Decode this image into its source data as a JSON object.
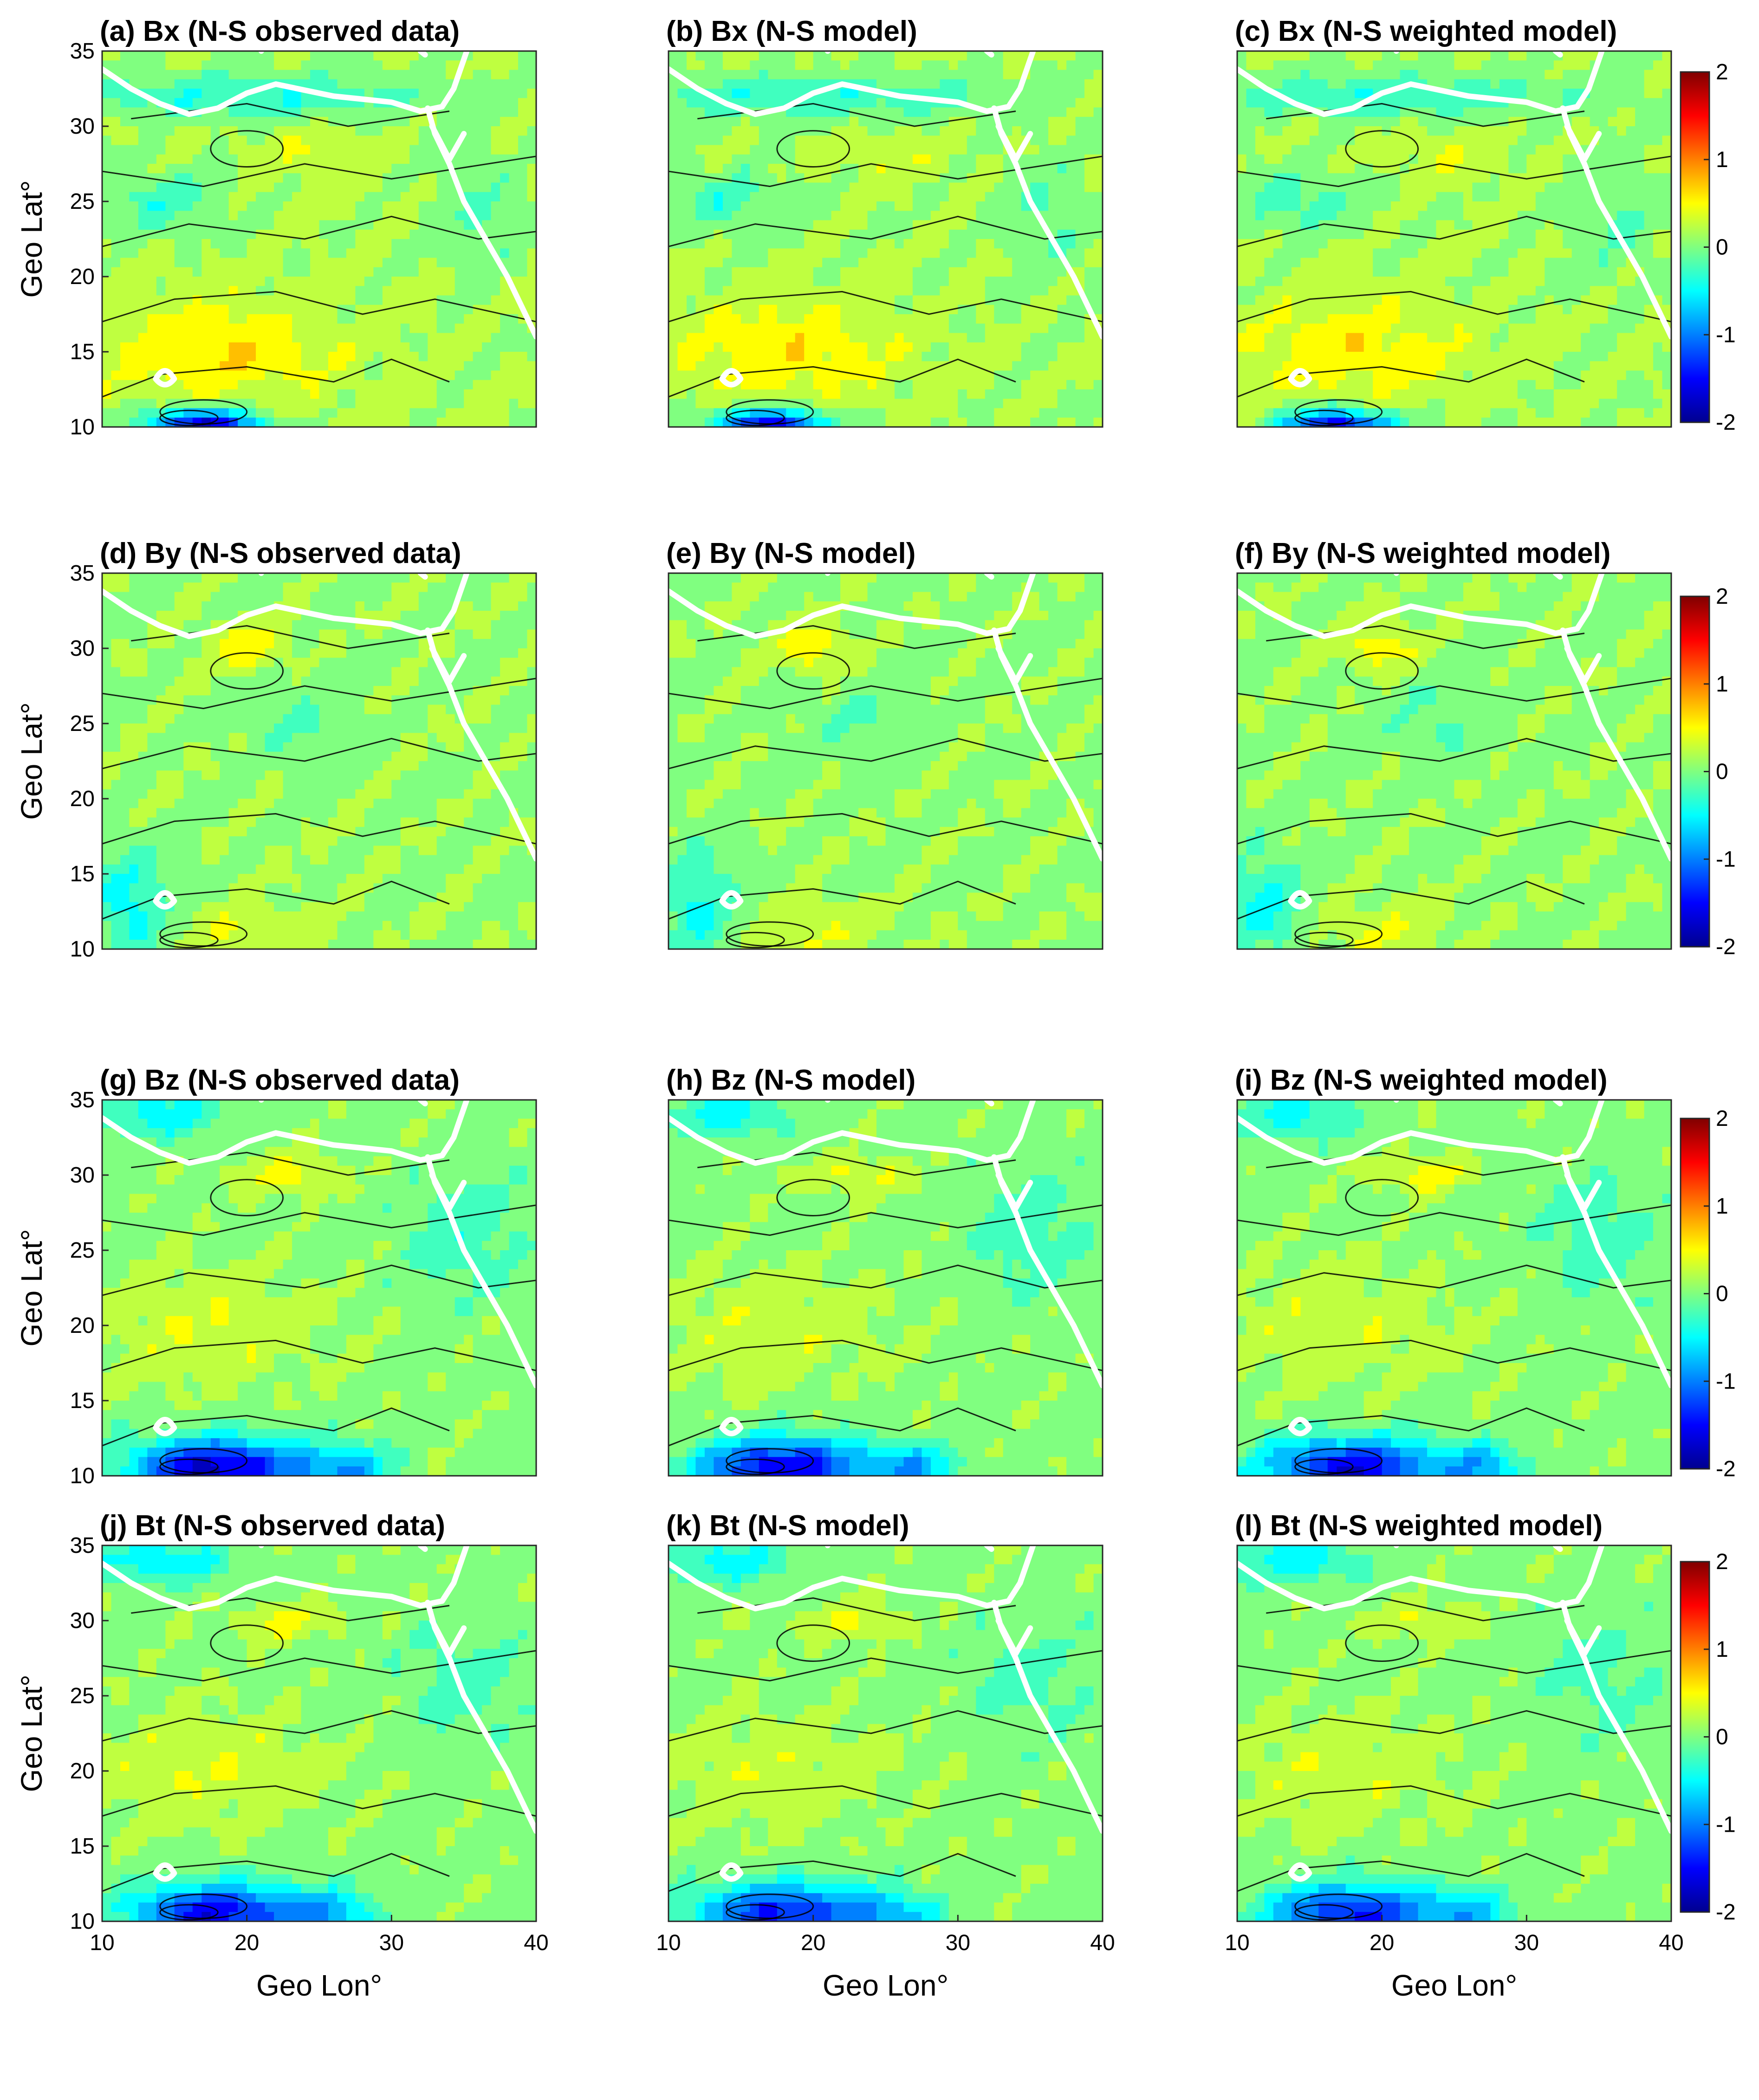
{
  "figure": {
    "colorbar": {
      "ticks": [
        "2",
        "1",
        "0",
        "-1",
        "-2"
      ],
      "colormap": "jet",
      "range": [
        -2,
        2
      ]
    },
    "x_axis_label": "Geo Lon°",
    "y_axis_label": "Geo Lat°",
    "x_ticks": [
      "10",
      "20",
      "30",
      "40"
    ],
    "y_ticks": [
      "35",
      "30",
      "25",
      "20",
      "15",
      "10"
    ]
  },
  "chart_data": [
    {
      "type": "heatmap",
      "title": "(a) Bx (N-S observed data)",
      "component": "Bx",
      "variant": "observed",
      "xlim": [
        10,
        40
      ],
      "ylim": [
        10,
        35
      ],
      "clim": [
        -2,
        2
      ]
    },
    {
      "type": "heatmap",
      "title": "(b) Bx (N-S model)",
      "component": "Bx",
      "variant": "model",
      "xlim": [
        10,
        40
      ],
      "ylim": [
        10,
        35
      ],
      "clim": [
        -2,
        2
      ]
    },
    {
      "type": "heatmap",
      "title": "(c) Bx (N-S weighted model)",
      "component": "Bx",
      "variant": "weighted",
      "xlim": [
        10,
        40
      ],
      "ylim": [
        10,
        35
      ],
      "clim": [
        -2,
        2
      ]
    },
    {
      "type": "heatmap",
      "title": "(d) By (N-S observed data)",
      "component": "By",
      "variant": "observed",
      "xlim": [
        10,
        40
      ],
      "ylim": [
        10,
        35
      ],
      "clim": [
        -2,
        2
      ]
    },
    {
      "type": "heatmap",
      "title": "(e) By (N-S model)",
      "component": "By",
      "variant": "model",
      "xlim": [
        10,
        40
      ],
      "ylim": [
        10,
        35
      ],
      "clim": [
        -2,
        2
      ]
    },
    {
      "type": "heatmap",
      "title": "(f) By (N-S weighted model)",
      "component": "By",
      "variant": "weighted",
      "xlim": [
        10,
        40
      ],
      "ylim": [
        10,
        35
      ],
      "clim": [
        -2,
        2
      ]
    },
    {
      "type": "heatmap",
      "title": "(g) Bz (N-S observed data)",
      "component": "Bz",
      "variant": "observed",
      "xlim": [
        10,
        40
      ],
      "ylim": [
        10,
        35
      ],
      "clim": [
        -2,
        2
      ]
    },
    {
      "type": "heatmap",
      "title": "(h) Bz (N-S model)",
      "component": "Bz",
      "variant": "model",
      "xlim": [
        10,
        40
      ],
      "ylim": [
        10,
        35
      ],
      "clim": [
        -2,
        2
      ]
    },
    {
      "type": "heatmap",
      "title": "(i) Bz (N-S weighted model)",
      "component": "Bz",
      "variant": "weighted",
      "xlim": [
        10,
        40
      ],
      "ylim": [
        10,
        35
      ],
      "clim": [
        -2,
        2
      ]
    },
    {
      "type": "heatmap",
      "title": "(j) Bt (N-S observed data)",
      "component": "Bt",
      "variant": "observed",
      "xlim": [
        10,
        40
      ],
      "ylim": [
        10,
        35
      ],
      "clim": [
        -2,
        2
      ]
    },
    {
      "type": "heatmap",
      "title": "(k) Bt (N-S model)",
      "component": "Bt",
      "variant": "model",
      "xlim": [
        10,
        40
      ],
      "ylim": [
        10,
        35
      ],
      "clim": [
        -2,
        2
      ]
    },
    {
      "type": "heatmap",
      "title": "(l) Bt (N-S weighted model)",
      "component": "Bt",
      "variant": "weighted",
      "xlim": [
        10,
        40
      ],
      "ylim": [
        10,
        35
      ],
      "clim": [
        -2,
        2
      ]
    }
  ]
}
